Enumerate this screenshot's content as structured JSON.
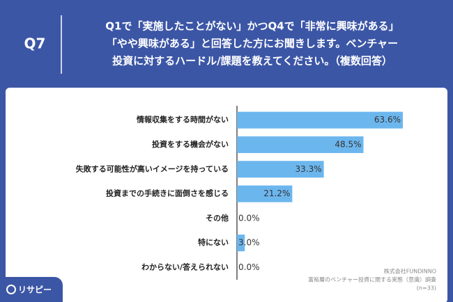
{
  "chart_data": {
    "type": "bar",
    "orientation": "horizontal",
    "question": "Q7",
    "title": [
      "Q1で「実施したことがない」かつQ4で「非常に興味がある」",
      "「やや興味がある」と回答した方にお聞きします。ベンチャー",
      "投資に対するハードル/課題を教えてください。（複数回答）"
    ],
    "categories": [
      "情報収集をする時間がない",
      "投資をする機会がない",
      "失敗する可能性が高いイメージを持っている",
      "投資までの手続きに面倒さを感じる",
      "その他",
      "特にない",
      "わからない/答えられない"
    ],
    "values": [
      63.6,
      48.5,
      33.3,
      21.2,
      0.0,
      3.0,
      0.0
    ],
    "value_labels": [
      "63.6%",
      "48.5%",
      "33.3%",
      "21.2%",
      "0.0%",
      "3.0%",
      "0.0%"
    ],
    "color": "#6cb6ee",
    "xlim": [
      0,
      70
    ],
    "source": [
      "株式会社FUNDINNO",
      "富裕層のベンチャー投資に関する実態（意識）調査",
      "(n=33)"
    ],
    "logo": "リサピー"
  }
}
